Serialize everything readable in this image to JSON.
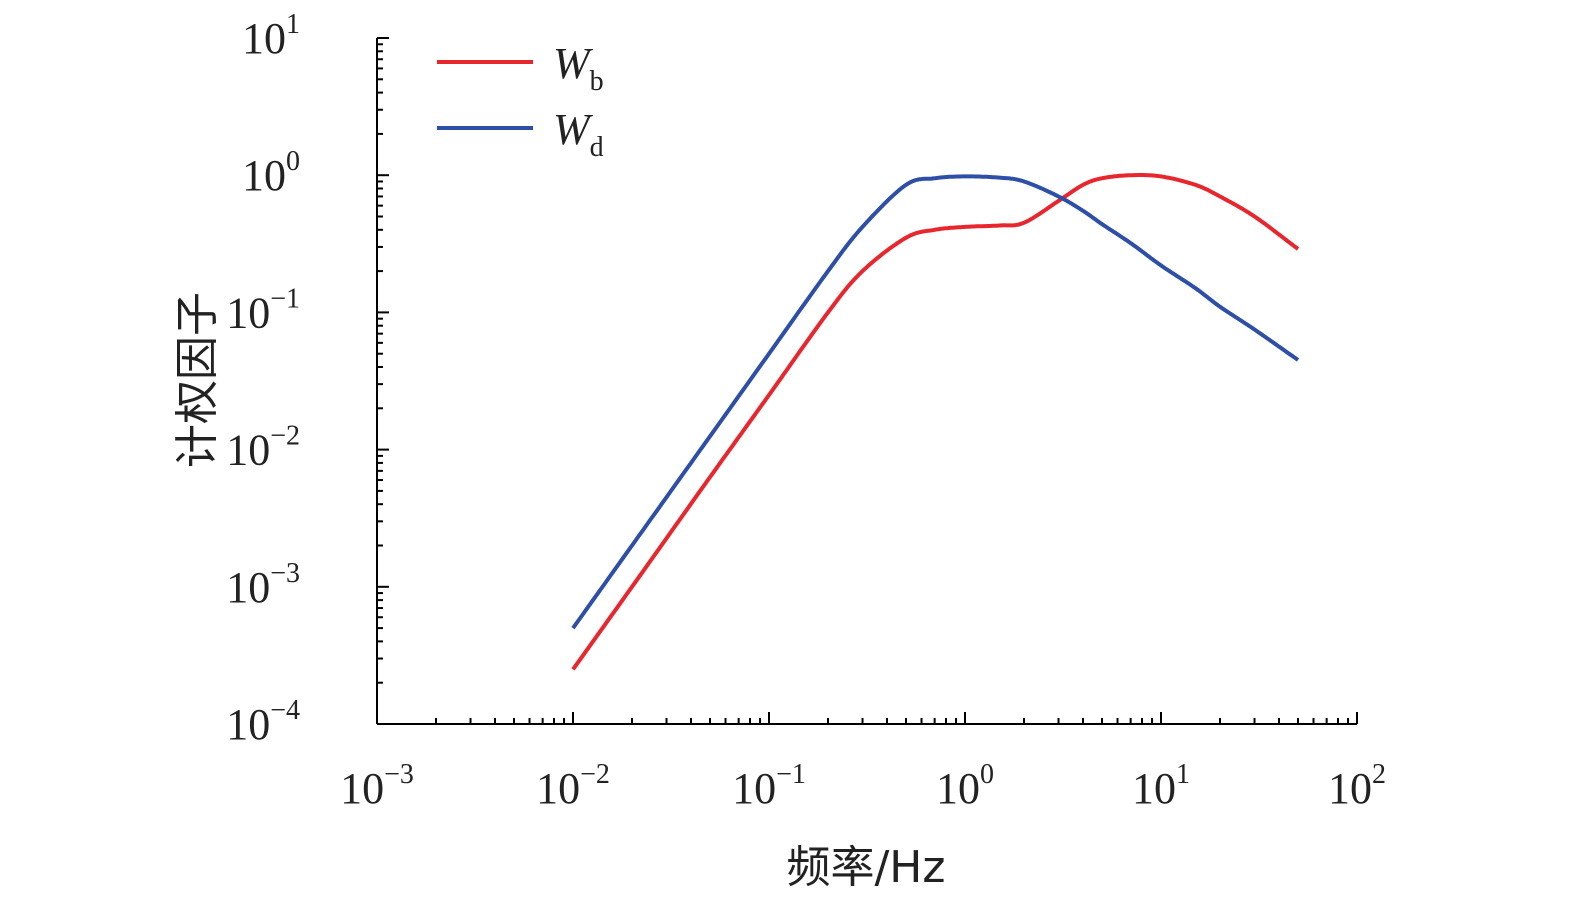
{
  "chart_data": {
    "type": "line",
    "xscale": "log",
    "yscale": "log",
    "xlabel": "频率/Hz",
    "ylabel": "计权因子",
    "x_tick_labels": [
      {
        "base": "10",
        "exp": "−3"
      },
      {
        "base": "10",
        "exp": "−2"
      },
      {
        "base": "10",
        "exp": "−1"
      },
      {
        "base": "10",
        "exp": "0"
      },
      {
        "base": "10",
        "exp": "1"
      },
      {
        "base": "10",
        "exp": "2"
      }
    ],
    "y_tick_labels": [
      {
        "base": "10",
        "exp": "1"
      },
      {
        "base": "10",
        "exp": "0"
      },
      {
        "base": "10",
        "exp": "−1"
      },
      {
        "base": "10",
        "exp": "−2"
      },
      {
        "base": "10",
        "exp": "−3"
      },
      {
        "base": "10",
        "exp": "−4"
      }
    ],
    "xlim": [
      0.001,
      100
    ],
    "ylim": [
      0.0001,
      10
    ],
    "legend_position": "top-left",
    "series": [
      {
        "name": "W_b",
        "legend_main": "W",
        "legend_sub": "b",
        "color": "#e8262d",
        "x": [
          0.01,
          0.02,
          0.05,
          0.1,
          0.2,
          0.3,
          0.5,
          0.7,
          1,
          1.5,
          2,
          3,
          4,
          5,
          7,
          10,
          15,
          20,
          30,
          50
        ],
        "y": [
          0.00025,
          0.001,
          0.0063,
          0.025,
          0.1,
          0.2,
          0.35,
          0.4,
          0.42,
          0.43,
          0.45,
          0.65,
          0.85,
          0.95,
          1.0,
          0.98,
          0.85,
          0.7,
          0.5,
          0.29
        ]
      },
      {
        "name": "W_d",
        "legend_main": "W",
        "legend_sub": "d",
        "color": "#2e4fa8",
        "x": [
          0.01,
          0.02,
          0.05,
          0.1,
          0.2,
          0.3,
          0.5,
          0.7,
          1,
          1.5,
          2,
          3,
          4,
          5,
          7,
          10,
          15,
          20,
          30,
          50
        ],
        "y": [
          0.0005,
          0.002,
          0.0125,
          0.05,
          0.2,
          0.42,
          0.85,
          0.95,
          0.98,
          0.96,
          0.9,
          0.7,
          0.55,
          0.44,
          0.32,
          0.22,
          0.15,
          0.11,
          0.075,
          0.045
        ]
      }
    ]
  }
}
